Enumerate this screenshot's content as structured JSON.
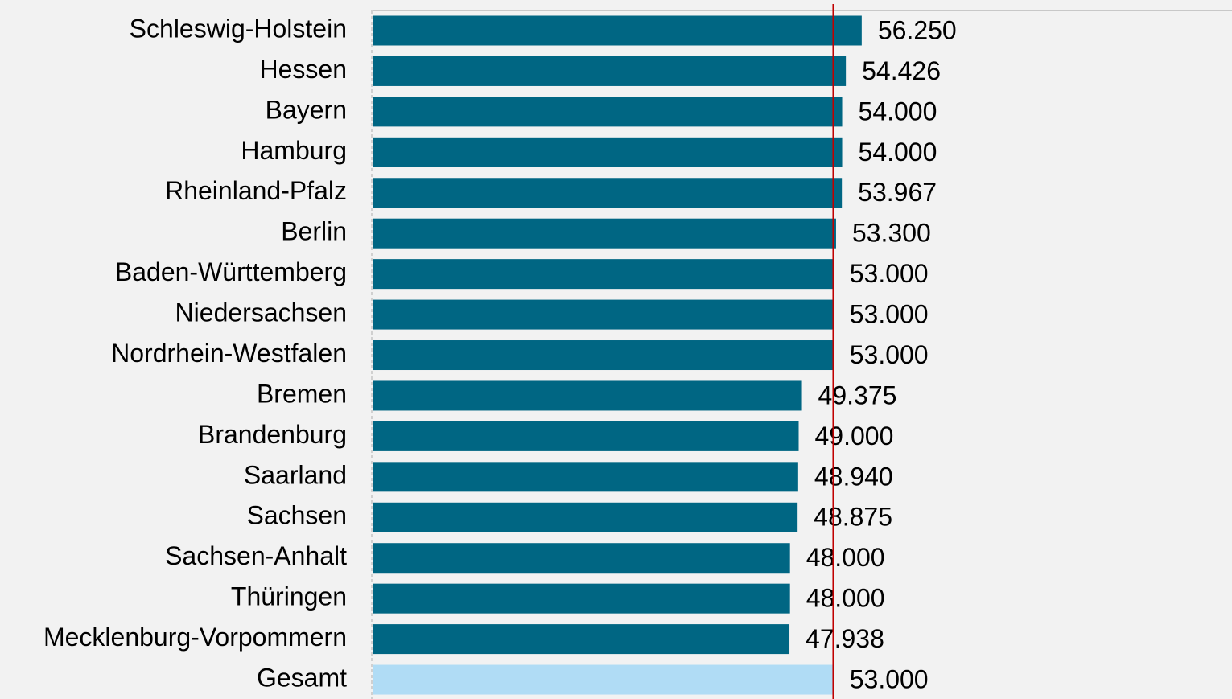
{
  "chart_data": {
    "type": "bar",
    "orientation": "horizontal",
    "categories": [
      "Schleswig-Holstein",
      "Hessen",
      "Bayern",
      "Hamburg",
      "Rheinland-Pfalz",
      "Berlin",
      "Baden-Württemberg",
      "Niedersachsen",
      "Nordrhein-Westfalen",
      "Bremen",
      "Brandenburg",
      "Saarland",
      "Sachsen",
      "Sachsen-Anhalt",
      "Thüringen",
      "Mecklenburg-Vorpommern",
      "Gesamt"
    ],
    "values": [
      56250,
      54426,
      54000,
      54000,
      53967,
      53300,
      53000,
      53000,
      53000,
      49375,
      49000,
      48940,
      48875,
      48000,
      48000,
      47938,
      53000
    ],
    "value_labels": [
      "56.250",
      "54.426",
      "54.000",
      "54.000",
      "53.967",
      "53.300",
      "53.000",
      "53.000",
      "53.000",
      "49.375",
      "49.000",
      "48.940",
      "48.875",
      "48.000",
      "48.000",
      "47.938",
      "53.000"
    ],
    "colors": [
      "#006683",
      "#006683",
      "#006683",
      "#006683",
      "#006683",
      "#006683",
      "#006683",
      "#006683",
      "#006683",
      "#006683",
      "#006683",
      "#006683",
      "#006683",
      "#006683",
      "#006683",
      "#006683",
      "#b0dcf5"
    ],
    "reference_line_color": "#c00000",
    "xlim": [
      0,
      98000
    ]
  }
}
